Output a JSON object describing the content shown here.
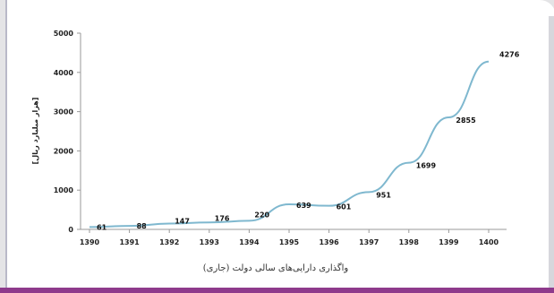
{
  "chart_data": {
    "type": "line",
    "title": "",
    "xlabel": "",
    "ylabel": "[هزار میلیارد ریال]",
    "caption": "واگذاری دارایی‌های سالی دولت (جاری)",
    "x": [
      "1390",
      "1391",
      "1392",
      "1393",
      "1394",
      "1395",
      "1396",
      "1397",
      "1398",
      "1399",
      "1400"
    ],
    "series": [
      {
        "values": [
          61,
          88,
          147,
          176,
          220,
          639,
          601,
          951,
          1699,
          2855,
          4276
        ]
      }
    ],
    "data_labels": [
      "61",
      "88",
      "147",
      "176",
      "220",
      "639",
      "601",
      "951",
      "1699",
      "2855",
      "4276"
    ],
    "ylim": [
      0,
      5000
    ],
    "yticks": [
      "0",
      "1000",
      "2000",
      "3000",
      "4000",
      "5000"
    ],
    "grid": false,
    "legend": "none",
    "line_color": "#7fb8cf"
  }
}
